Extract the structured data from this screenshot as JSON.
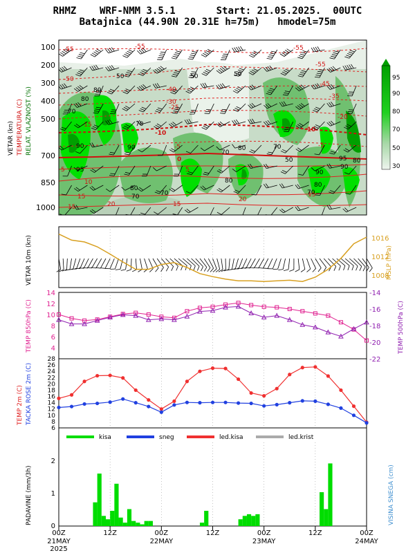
{
  "header": {
    "line1": "RHMZ    WRF-NMM 3.5.1       Start: 21.05.2025.  00UTC",
    "line2": "Batajnica (44.90N 20.31E h=75m)   hmodel=75m"
  },
  "colors": {
    "green_dark": "#00a000",
    "green_bright": "#00e000",
    "green_mid": "#70c070",
    "green_light": "#c8dcc8",
    "isotherm": "#e02020",
    "mslp": "#d8a020",
    "temp850": "#e02090",
    "temp500": "#9020b0",
    "temp2m": "#f03030",
    "dewpoint": "#2040e0",
    "rain": "#00dd00"
  },
  "time_axis": {
    "ticks": [
      "00Z",
      "12Z",
      "00Z",
      "12Z",
      "00Z",
      "12Z",
      "00Z"
    ],
    "ticks_hours": [
      0,
      12,
      24,
      36,
      48,
      60,
      72
    ],
    "dates": [
      "21MAY",
      "22MAY",
      "23MAY",
      "24MAY"
    ],
    "dates_hours": [
      0,
      24,
      48,
      72
    ],
    "year": "2025"
  },
  "panels": {
    "profile": {
      "ylabel_wind": "VETAR (kn)",
      "ylabel_temp": "TEMPERATURA (C)",
      "ylabel_rh": "RELAT. VLAZNOST (%)",
      "pressure_ticks": [
        "100",
        "200",
        "300",
        "400",
        "500",
        "700",
        "850",
        "1000"
      ],
      "colorbar_labels": [
        "95",
        "90",
        "80",
        "70",
        "50",
        "30"
      ]
    },
    "wind10m": {
      "ylabel": "VETAR 10m (kn)",
      "right_label": "MSLP (hPa)",
      "right_ticks": [
        "1016",
        "1012",
        "1008"
      ]
    },
    "temp_upper": {
      "left_label": "TEMP 850hPa (C)",
      "right_label": "TEMP 500hPa (C)",
      "left_ticks": [
        "14",
        "12",
        "10",
        "8",
        "6",
        "4"
      ],
      "right_ticks": [
        "-14",
        "-16",
        "-18",
        "-20",
        "-22"
      ]
    },
    "temp2m": {
      "label_temp": "TEMP 2m (C)",
      "label_dew": "TACKA ROSE 2m (C)",
      "ticks": [
        "28",
        "26",
        "24",
        "22",
        "20",
        "18",
        "16",
        "14",
        "12",
        "10",
        "8",
        "6"
      ]
    },
    "precip": {
      "ylabel": "PADAVINE (mm/3h)",
      "right_label": "VISINA SNEGA (cm)",
      "ticks": [
        "2",
        "1",
        "0"
      ],
      "legend": [
        "kisa",
        "sneg",
        "led.kisa",
        "led.krist"
      ]
    }
  },
  "chart_data": [
    {
      "type": "heatmap",
      "name": "vertical profile: relative humidity, isotherms, winds",
      "y_axis": "pressure (hPa)",
      "ylim": [
        1000,
        100
      ],
      "x_axis": "forecast hour",
      "xlim": [
        0,
        72
      ],
      "isotherm_labels": [
        "-55",
        "-50",
        "-45",
        "-40",
        "-35",
        "-30",
        "-25",
        "-20",
        "-15",
        "-10",
        "-5",
        "0",
        "5",
        "10",
        "15",
        "20"
      ],
      "rh_labels": [
        "50",
        "60",
        "70",
        "80",
        "90",
        "95"
      ]
    },
    {
      "type": "line",
      "name": "MSLP",
      "ylabel": "MSLP (hPa)",
      "ylim": [
        1007,
        1017
      ],
      "x": [
        0,
        3,
        6,
        9,
        12,
        15,
        18,
        21,
        24,
        27,
        30,
        33,
        36,
        39,
        42,
        45,
        48,
        51,
        54,
        57,
        60,
        63,
        66,
        69,
        72
      ],
      "values": [
        1015.8,
        1014.8,
        1014.5,
        1013.7,
        1012.5,
        1011.2,
        1010.0,
        1010.0,
        1010.8,
        1011.1,
        1010.3,
        1009.3,
        1008.8,
        1008.4,
        1008.1,
        1008.1,
        1008.0,
        1008.1,
        1008.2,
        1008.0,
        1008.7,
        1010.0,
        1011.8,
        1014.2,
        1015.3
      ]
    },
    {
      "type": "line",
      "name": "temperature 850/500 hPa",
      "x": [
        0,
        3,
        6,
        9,
        12,
        15,
        18,
        21,
        24,
        27,
        30,
        33,
        36,
        39,
        42,
        45,
        48,
        51,
        54,
        57,
        60,
        63,
        66,
        69,
        72
      ],
      "series": [
        {
          "name": "TEMP 850hPa (C)",
          "axis": "left",
          "ylim": [
            2,
            14
          ],
          "values": [
            10.0,
            9.3,
            8.9,
            9.1,
            9.6,
            10.1,
            10.3,
            10.0,
            9.6,
            9.4,
            10.6,
            11.2,
            11.4,
            11.8,
            12.1,
            11.7,
            11.4,
            11.3,
            11.0,
            10.6,
            10.2,
            9.8,
            8.6,
            7.3,
            5.3
          ]
        },
        {
          "name": "TEMP 500hPa (C)",
          "axis": "right",
          "ylim": [
            -22,
            -14
          ],
          "values": [
            -17.3,
            -17.8,
            -17.8,
            -17.4,
            -17.0,
            -16.7,
            -16.8,
            -17.3,
            -17.2,
            -17.3,
            -16.9,
            -16.3,
            -16.2,
            -15.8,
            -15.7,
            -16.5,
            -17.0,
            -16.8,
            -17.3,
            -17.9,
            -18.2,
            -18.8,
            -19.3,
            -18.4,
            -17.6
          ]
        }
      ]
    },
    {
      "type": "line",
      "name": "temperature and dew point 2m",
      "ylim": [
        6,
        28
      ],
      "x": [
        0,
        3,
        6,
        9,
        12,
        15,
        18,
        21,
        24,
        27,
        30,
        33,
        36,
        39,
        42,
        45,
        48,
        51,
        54,
        57,
        60,
        63,
        66,
        69,
        72
      ],
      "series": [
        {
          "name": "TEMP 2m (C)",
          "values": [
            15.4,
            16.5,
            20.8,
            22.6,
            22.7,
            21.9,
            18.0,
            14.9,
            12.0,
            14.5,
            20.8,
            24.0,
            25.0,
            24.9,
            21.5,
            17.1,
            16.2,
            18.5,
            23.0,
            25.2,
            25.4,
            22.5,
            18.0,
            12.9,
            7.8
          ]
        },
        {
          "name": "TACKA ROSE 2m (C)",
          "values": [
            12.5,
            12.8,
            13.6,
            13.8,
            14.2,
            15.2,
            14.0,
            12.8,
            11.0,
            13.3,
            14.1,
            14.0,
            14.1,
            14.1,
            13.9,
            13.8,
            13.0,
            13.4,
            14.0,
            14.6,
            14.5,
            13.5,
            12.3,
            10.0,
            7.6
          ]
        }
      ]
    },
    {
      "type": "bar",
      "name": "precipitation",
      "ylabel": "PADAVINE (mm/3h)",
      "ylim": [
        0,
        2.9
      ],
      "series": [
        {
          "name": "kisa",
          "x": [
            8,
            9,
            10,
            11,
            12,
            13,
            14,
            15,
            16,
            17,
            18,
            19,
            20,
            21,
            33,
            34,
            42,
            43,
            44,
            45,
            46,
            61,
            62,
            63
          ],
          "values": [
            0.7,
            1.55,
            0.3,
            0.2,
            0.45,
            1.25,
            0.25,
            0.1,
            0.5,
            0.15,
            0.1,
            0.05,
            0.15,
            0.15,
            0.1,
            0.45,
            0.2,
            0.3,
            0.35,
            0.3,
            0.35,
            1.0,
            0.5,
            1.85
          ]
        },
        {
          "name": "sneg",
          "x": [],
          "values": []
        },
        {
          "name": "led.kisa",
          "x": [],
          "values": []
        },
        {
          "name": "led.krist",
          "x": [],
          "values": []
        }
      ]
    }
  ]
}
